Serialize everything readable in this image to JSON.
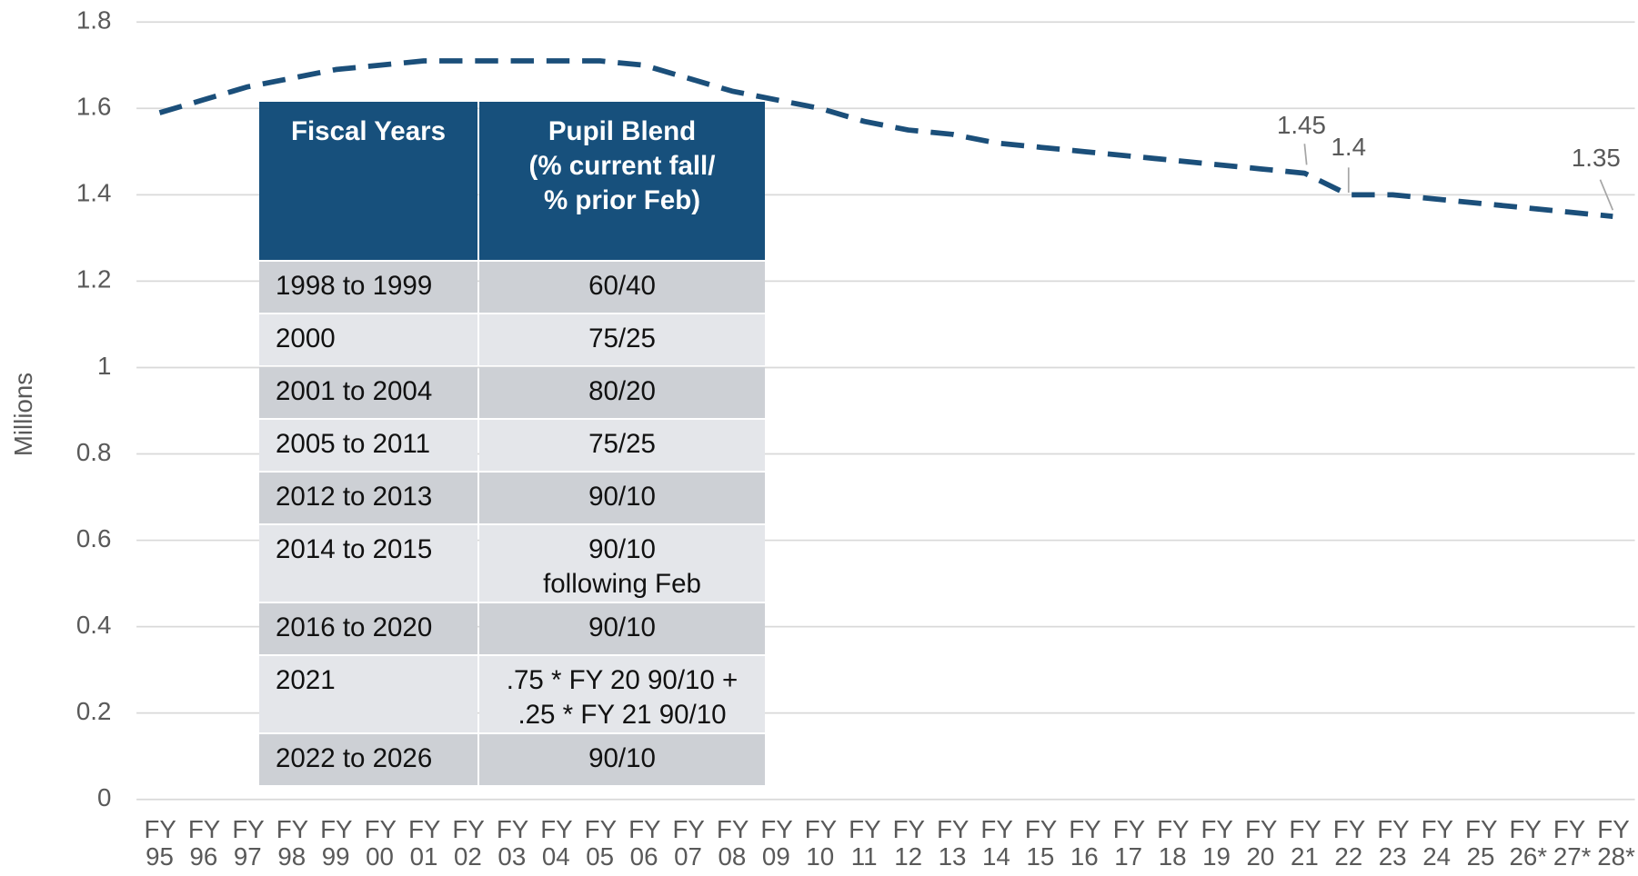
{
  "chart_data": {
    "type": "line",
    "y_label": "Millions",
    "categories": [
      "FY 95",
      "FY 96",
      "FY 97",
      "FY 98",
      "FY 99",
      "FY 00",
      "FY 01",
      "FY 02",
      "FY 03",
      "FY 04",
      "FY 05",
      "FY 06",
      "FY 07",
      "FY 08",
      "FY 09",
      "FY 10",
      "FY 11",
      "FY 12",
      "FY 13",
      "FY 14",
      "FY 15",
      "FY 16",
      "FY 17",
      "FY 18",
      "FY 19",
      "FY 20",
      "FY 21",
      "FY 22",
      "FY 23",
      "FY 24",
      "FY 25",
      "FY 26*",
      "FY 27*",
      "FY 28*"
    ],
    "series": [
      {
        "color": "#1b4f7a",
        "values": [
          1.59,
          1.62,
          1.65,
          1.67,
          1.69,
          1.7,
          1.71,
          1.71,
          1.71,
          1.71,
          1.71,
          1.7,
          1.67,
          1.64,
          1.62,
          1.6,
          1.57,
          1.55,
          1.54,
          1.52,
          1.51,
          1.5,
          1.49,
          1.48,
          1.47,
          1.46,
          1.45,
          1.4,
          1.4,
          1.39,
          1.38,
          1.37,
          1.36,
          1.35
        ],
        "value_labels": [
          null,
          null,
          null,
          null,
          null,
          null,
          null,
          null,
          null,
          null,
          null,
          null,
          null,
          null,
          null,
          null,
          null,
          null,
          null,
          null,
          null,
          null,
          null,
          null,
          null,
          null,
          "1.45",
          "1.4",
          null,
          null,
          null,
          null,
          null,
          "1.35"
        ]
      }
    ],
    "ylim": [
      0,
      1.8
    ],
    "yticks": [
      0,
      0.2,
      0.4,
      0.6,
      0.8,
      1,
      1.2,
      1.4,
      1.6,
      1.8
    ],
    "grid": true
  },
  "table": {
    "header": [
      "Fiscal Years",
      "Pupil Blend\n(% current fall/\n% prior Feb)"
    ],
    "rows": [
      [
        "1998 to 1999",
        "60/40"
      ],
      [
        "2000",
        "75/25"
      ],
      [
        "2001 to 2004",
        "80/20"
      ],
      [
        "2005 to 2011",
        "75/25"
      ],
      [
        "2012 to 2013",
        "90/10"
      ],
      [
        "2014 to 2015",
        "90/10\nfollowing Feb"
      ],
      [
        "2016 to 2020",
        "90/10"
      ],
      [
        "2021",
        ".75 * FY 20 90/10 +\n.25 * FY 21 90/10"
      ],
      [
        "2022 to 2026",
        "90/10"
      ]
    ]
  }
}
